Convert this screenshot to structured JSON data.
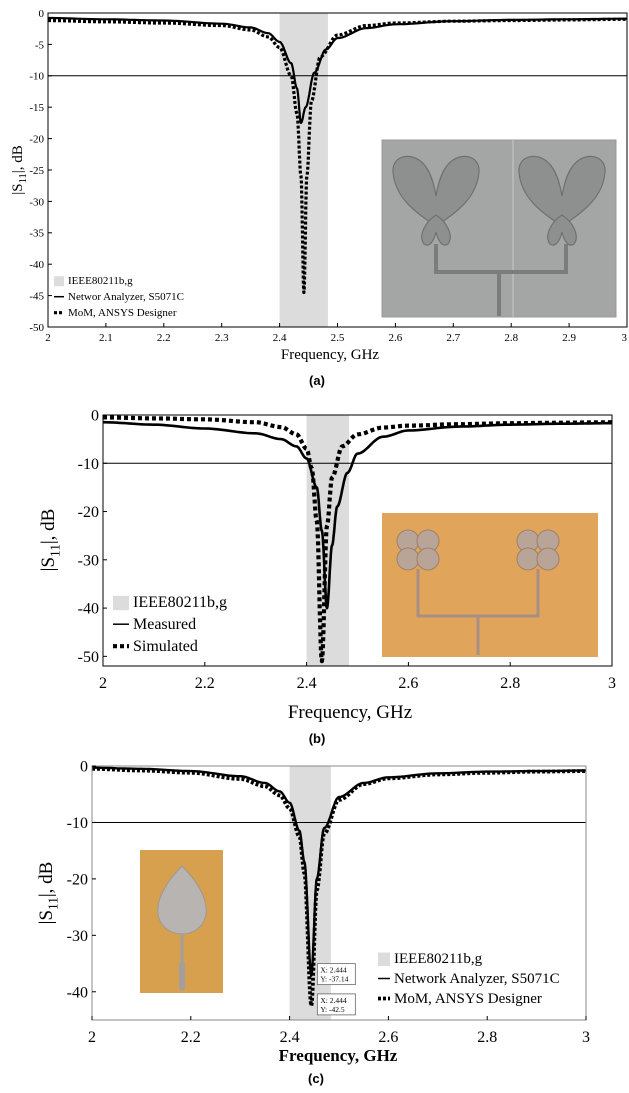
{
  "panels": [
    {
      "id": "a",
      "caption": "(a)",
      "chart_data": {
        "type": "line",
        "xlabel": "Frequency, GHz",
        "ylabel": "|S11|, dB",
        "xlim": [
          2,
          3
        ],
        "ylim": [
          -50,
          0
        ],
        "xticks": [
          2,
          2.1,
          2.2,
          2.3,
          2.4,
          2.5,
          2.6,
          2.7,
          2.8,
          2.9,
          3
        ],
        "xtick_labels": [
          "2",
          "2.1",
          "2.2",
          "2.3",
          "2.4",
          "2.5",
          "2.6",
          "2.7",
          "2.8",
          "2.9",
          "3"
        ],
        "yticks": [
          0,
          -5,
          -10,
          -15,
          -20,
          -25,
          -30,
          -35,
          -40,
          -45,
          -50
        ],
        "ytick_labels": [
          "0",
          "-5",
          "-10",
          "-15",
          "-20",
          "-25",
          "-30",
          "-35",
          "-40",
          "-45",
          "-50"
        ],
        "band": {
          "name": "IEEE80211b,g",
          "x": [
            2.4,
            2.4835
          ]
        },
        "reference_line": -10,
        "legend_position": "bottom-left",
        "series": [
          {
            "name": "Networ Analyzer, S5071C",
            "style": "solid",
            "resonance": 2.437,
            "min": -17.5,
            "x": [
              2,
              2.1,
              2.2,
              2.3,
              2.35,
              2.38,
              2.4,
              2.42,
              2.43,
              2.437,
              2.445,
              2.46,
              2.48,
              2.5,
              2.55,
              2.6,
              2.7,
              2.8,
              2.9,
              3
            ],
            "y": [
              -0.8,
              -1.0,
              -1.2,
              -1.7,
              -2.3,
              -3.2,
              -4.6,
              -8.0,
              -12.0,
              -17.5,
              -15.0,
              -9.5,
              -5.8,
              -4.0,
              -2.4,
              -1.8,
              -1.3,
              -1.1,
              -1.0,
              -0.9
            ]
          },
          {
            "name": "MoM, ANSYS Designer",
            "style": "dotted",
            "resonance": 2.442,
            "min": -44.5,
            "x": [
              2,
              2.1,
              2.2,
              2.3,
              2.35,
              2.38,
              2.4,
              2.42,
              2.43,
              2.437,
              2.442,
              2.447,
              2.455,
              2.47,
              2.5,
              2.55,
              2.6,
              2.7,
              2.8,
              2.9,
              3
            ],
            "y": [
              -1.2,
              -1.4,
              -1.6,
              -2.0,
              -2.7,
              -3.8,
              -5.5,
              -10.0,
              -16.0,
              -26.0,
              -44.5,
              -26.0,
              -14.0,
              -7.0,
              -3.5,
              -2.0,
              -1.6,
              -1.3,
              -1.2,
              -1.1,
              -1.0
            ]
          }
        ]
      }
    },
    {
      "id": "b",
      "caption": "(b)",
      "chart_data": {
        "type": "line",
        "xlabel": "Frequency, GHz",
        "ylabel": "|S11|, dB",
        "xlim": [
          2,
          3
        ],
        "ylim": [
          -52,
          0
        ],
        "xticks": [
          2,
          2.2,
          2.4,
          2.6,
          2.8,
          3
        ],
        "xtick_labels": [
          "2",
          "2.2",
          "2.4",
          "2.6",
          "2.8",
          "3"
        ],
        "yticks": [
          0,
          -10,
          -20,
          -30,
          -40,
          -50
        ],
        "ytick_labels": [
          "0",
          "-10",
          "-20",
          "-30",
          "-40",
          "-50"
        ],
        "band": {
          "name": "IEEE80211b,g",
          "x": [
            2.4,
            2.4835
          ]
        },
        "reference_line": -10,
        "legend_position": "bottom-left",
        "series": [
          {
            "name": "Measured",
            "style": "solid",
            "resonance": 2.44,
            "min": -40,
            "x": [
              2,
              2.1,
              2.2,
              2.3,
              2.35,
              2.38,
              2.4,
              2.42,
              2.43,
              2.44,
              2.45,
              2.46,
              2.48,
              2.5,
              2.55,
              2.6,
              2.7,
              2.8,
              2.9,
              3
            ],
            "y": [
              -1.5,
              -2.0,
              -2.8,
              -3.8,
              -5.0,
              -6.5,
              -9.0,
              -15.0,
              -24.0,
              -40.0,
              -27.0,
              -19.0,
              -12.0,
              -8.0,
              -4.5,
              -3.2,
              -2.4,
              -2.0,
              -1.8,
              -1.7
            ]
          },
          {
            "name": "Simulated",
            "style": "dotted",
            "resonance": 2.43,
            "min": -51,
            "x": [
              2,
              2.1,
              2.2,
              2.3,
              2.35,
              2.38,
              2.4,
              2.41,
              2.42,
              2.43,
              2.44,
              2.45,
              2.47,
              2.5,
              2.55,
              2.6,
              2.7,
              2.8,
              2.9,
              3
            ],
            "y": [
              -0.5,
              -0.7,
              -0.9,
              -1.5,
              -2.5,
              -4.0,
              -7.0,
              -11.0,
              -22.0,
              -51.0,
              -23.0,
              -13.0,
              -6.5,
              -4.0,
              -2.6,
              -2.2,
              -1.9,
              -1.7,
              -1.6,
              -1.5
            ]
          }
        ]
      }
    },
    {
      "id": "c",
      "caption": "(c)",
      "chart_data": {
        "type": "line",
        "xlabel": "Frequency, GHz",
        "ylabel": "|S11|, dB",
        "xlim": [
          2,
          3
        ],
        "ylim": [
          -45,
          0
        ],
        "xticks": [
          2,
          2.2,
          2.4,
          2.6,
          2.8,
          3
        ],
        "xtick_labels": [
          "2",
          "2.2",
          "2.4",
          "2.6",
          "2.8",
          "3"
        ],
        "yticks": [
          0,
          -10,
          -20,
          -30,
          -40
        ],
        "ytick_labels": [
          "0",
          "-10",
          "-20",
          "-30",
          "-40"
        ],
        "band": {
          "name": "IEEE80211b,g",
          "x": [
            2.4,
            2.4835
          ]
        },
        "reference_line": -10,
        "legend_position": "bottom-right",
        "datatips": [
          {
            "x_text": "X: 2.444",
            "y_text": "Y: -37.14",
            "x": 2.444,
            "y": -37.14
          },
          {
            "x_text": "X: 2.444",
            "y_text": "Y: -42.5",
            "x": 2.444,
            "y": -42.5
          }
        ],
        "series": [
          {
            "name": "Network Analyzer, S5071C",
            "style": "solid",
            "resonance": 2.444,
            "min": -37.14,
            "x": [
              2,
              2.1,
              2.2,
              2.3,
              2.35,
              2.38,
              2.4,
              2.42,
              2.43,
              2.444,
              2.455,
              2.47,
              2.5,
              2.55,
              2.6,
              2.7,
              2.8,
              2.9,
              3
            ],
            "y": [
              -0.3,
              -0.5,
              -0.9,
              -1.8,
              -3.0,
              -4.5,
              -6.5,
              -11.5,
              -17.0,
              -37.14,
              -20.0,
              -11.0,
              -5.5,
              -3.0,
              -2.0,
              -1.3,
              -1.0,
              -0.9,
              -0.8
            ]
          },
          {
            "name": "MoM, ANSYS Designer",
            "style": "dotted",
            "resonance": 2.444,
            "min": -42.5,
            "x": [
              2,
              2.1,
              2.2,
              2.3,
              2.35,
              2.38,
              2.4,
              2.42,
              2.43,
              2.444,
              2.455,
              2.47,
              2.5,
              2.55,
              2.6,
              2.7,
              2.8,
              2.9,
              3
            ],
            "y": [
              -0.5,
              -0.8,
              -1.2,
              -2.3,
              -3.6,
              -5.2,
              -7.5,
              -12.5,
              -19.0,
              -42.5,
              -22.0,
              -12.0,
              -6.0,
              -3.2,
              -2.2,
              -1.5,
              -1.2,
              -1.0,
              -0.9
            ]
          }
        ]
      }
    }
  ]
}
